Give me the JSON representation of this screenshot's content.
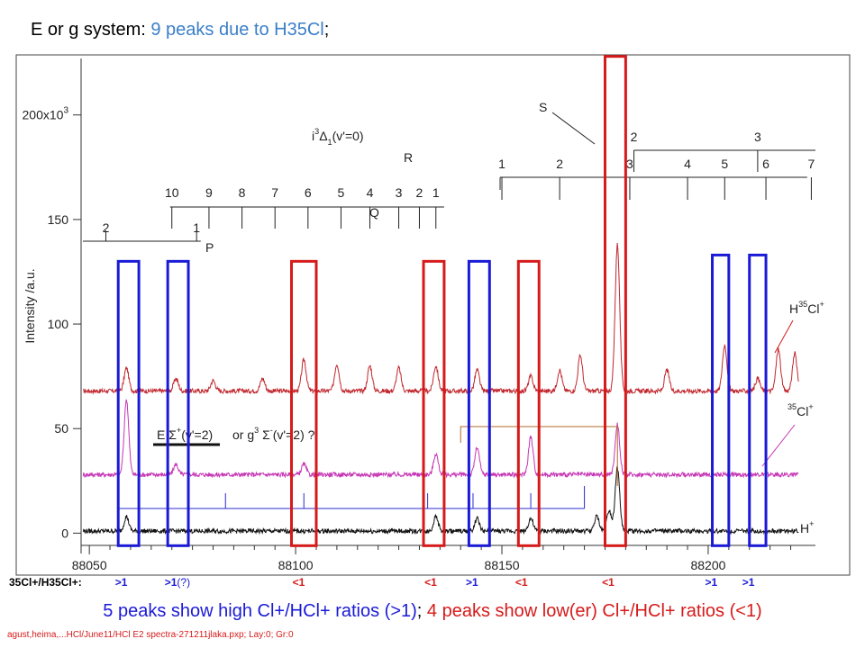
{
  "title": {
    "prefix": "E or g system: ",
    "highlight": "9 peaks due to H35Cl",
    "suffix": ";"
  },
  "chart_data": {
    "type": "line",
    "ylabel": "Intensity /a.u.",
    "xlim": [
      88048,
      88226
    ],
    "ylim": [
      -5,
      227
    ],
    "x_ticks": [
      88050,
      88100,
      88150,
      88200
    ],
    "x_tick_labels": [
      "88050",
      "88100",
      "88150",
      "88200"
    ],
    "y_ticks": [
      0,
      50,
      100,
      150,
      200
    ],
    "y_tick_labels": [
      "0",
      "50",
      "100",
      "150",
      "200x10"
    ],
    "y_top_exponent": "3",
    "series": [
      {
        "name": "H35Cl+",
        "color": "#c0272d",
        "baseline": 68,
        "peaks": [
          [
            88059,
            11
          ],
          [
            88071,
            6
          ],
          [
            88080,
            5
          ],
          [
            88092,
            6
          ],
          [
            88102,
            15
          ],
          [
            88110,
            13
          ],
          [
            88118,
            12
          ],
          [
            88125,
            11
          ],
          [
            88134,
            12
          ],
          [
            88144,
            10
          ],
          [
            88157,
            7
          ],
          [
            88164,
            10
          ],
          [
            88169,
            17
          ],
          [
            88178,
            70
          ],
          [
            88190,
            10
          ],
          [
            88204,
            22
          ],
          [
            88212,
            6
          ],
          [
            88217,
            20
          ],
          [
            88221,
            18
          ]
        ]
      },
      {
        "name": "35Cl+",
        "color": "#c535b4",
        "baseline": 28,
        "peaks": [
          [
            88059,
            36
          ],
          [
            88071,
            5
          ],
          [
            88102,
            5
          ],
          [
            88134,
            10
          ],
          [
            88144,
            13
          ],
          [
            88157,
            18
          ],
          [
            88178,
            24
          ]
        ]
      },
      {
        "name": "H+",
        "color": "#111111",
        "baseline": 1,
        "peaks": [
          [
            88059,
            7
          ],
          [
            88134,
            7
          ],
          [
            88144,
            6
          ],
          [
            88157,
            6
          ],
          [
            88173,
            7
          ],
          [
            88176,
            10
          ],
          [
            88178,
            30
          ]
        ]
      }
    ],
    "boxes": [
      {
        "color": "blue",
        "x": [
          88057,
          88062
        ],
        "y": [
          -6,
          130
        ]
      },
      {
        "color": "blue",
        "x": [
          88069,
          88074
        ],
        "y": [
          -6,
          130
        ]
      },
      {
        "color": "red",
        "x": [
          88099,
          88105
        ],
        "y": [
          -6,
          130
        ]
      },
      {
        "color": "red",
        "x": [
          88131,
          88136
        ],
        "y": [
          -6,
          130
        ]
      },
      {
        "color": "blue",
        "x": [
          88142,
          88147
        ],
        "y": [
          -6,
          130
        ]
      },
      {
        "color": "red",
        "x": [
          88154,
          88159
        ],
        "y": [
          -6,
          130
        ]
      },
      {
        "color": "red",
        "x": [
          88175,
          88180
        ],
        "y": [
          -6,
          228
        ]
      },
      {
        "color": "blue",
        "x": [
          88201,
          88205
        ],
        "y": [
          -6,
          133
        ]
      },
      {
        "color": "blue",
        "x": [
          88210,
          88214
        ],
        "y": [
          -6,
          133
        ]
      }
    ],
    "annotations": {
      "state_label": "i",
      "state_sup": "3",
      "state_greek": "Δ",
      "state_sub": "1",
      "state_vib": "(v'=0)",
      "branch_P": "P",
      "branch_Q": "Q",
      "branch_R": "R",
      "branch_S": "S",
      "e_label": "E",
      "e_sigma": "Σ",
      "e_sup": "+",
      "e_vib": "(v'=2)",
      "g_prefix": "or g",
      "g_sup": "3",
      "g_sigma": "Σ",
      "g_sup2": "-",
      "g_vib": "(v'=2) ?",
      "h35cl_H": "H",
      "h35cl_mass": "35",
      "h35cl_Cl": "Cl",
      "h35cl_plus": "+",
      "cl35_mass": "35",
      "cl35_Cl": "Cl",
      "cl35_plus": "+",
      "hplus_H": "H",
      "hplus_plus": "+"
    },
    "q_branch": {
      "labels": [
        "10",
        "9",
        "8",
        "7",
        "6",
        "5",
        "4",
        "3",
        "2",
        "1"
      ],
      "x": [
        88070,
        88079,
        88087,
        88095,
        88103,
        88111,
        88118,
        88125,
        88130,
        88134
      ]
    },
    "p_branch": {
      "labels": [
        "2",
        "1"
      ],
      "x": [
        88054,
        88076
      ]
    },
    "r_branch": {
      "labels": [
        "1",
        "2",
        "3",
        "4",
        "5",
        "6",
        "7"
      ],
      "x": [
        88150,
        88164,
        88181,
        88195,
        88204,
        88214,
        88225
      ]
    },
    "s_branch": {
      "labels": [
        "2",
        "3"
      ],
      "x": [
        88182,
        88212
      ]
    }
  },
  "ratios": {
    "label": "35Cl+/H35Cl+:",
    "items": [
      {
        "text": ">1",
        "color": "blue",
        "x": 88058
      },
      {
        "text": ">1",
        "color": "blue",
        "x": 88070,
        "note": "(?)"
      },
      {
        "text": "<1",
        "color": "red",
        "x": 88101
      },
      {
        "text": "<1",
        "color": "red",
        "x": 88133
      },
      {
        "text": ">1",
        "color": "blue",
        "x": 88143
      },
      {
        "text": "<1",
        "color": "red",
        "x": 88155
      },
      {
        "text": "<1",
        "color": "red",
        "x": 88176
      },
      {
        "text": ">1",
        "color": "blue",
        "x": 88201
      },
      {
        "text": ">1",
        "color": "blue",
        "x": 88210
      }
    ]
  },
  "summary": {
    "blue_part": "5 peaks show high Cl+/HCl+ ratios (>1)",
    "separator": "; ",
    "red_part": "4 peaks show low(er) Cl+/HCl+ ratios (<1)"
  },
  "footer": "agust,heima,...HCl/June11/HCl  E2 spectra-271211jlaka.pxp; Lay:0; Gr:0"
}
